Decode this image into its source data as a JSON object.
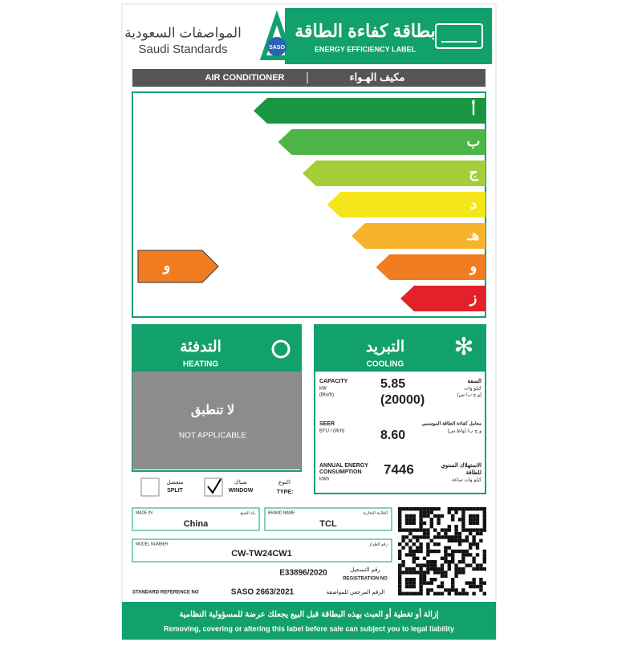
{
  "header": {
    "saso_arabic": "المواصفات السعودية",
    "saso_english": "Saudi Standards",
    "logo_text": "SASO",
    "title_arabic": "بطاقة كفاءة الطاقة",
    "title_english": "ENERGY EFFICIENCY LABEL"
  },
  "product": {
    "english": "AIR CONDITIONER",
    "arabic": "مكيف الهـواء"
  },
  "rating": {
    "classes": [
      "أ",
      "ب",
      "ج",
      "د",
      "هـ",
      "و",
      "ز"
    ],
    "current": "و"
  },
  "heating": {
    "arabic": "التدفئة",
    "english": "HEATING",
    "status_arabic": "لا تنطبق",
    "status_english": "NOT APPLICABLE"
  },
  "cooling": {
    "arabic": "التبريد",
    "english": "COOLING",
    "capacity": {
      "label_english": "CAPACITY",
      "unit_english": "kW",
      "unit2_english": "(Btu/h)",
      "label_arabic": "السعة",
      "unit_arabic": "كيلو وات",
      "unit2_arabic": "(و ح ب/ س)",
      "value": "5.85",
      "value2": "(20000)"
    },
    "seer": {
      "label_english": "SEER",
      "unit_english": "BTU / (W.h)",
      "label_arabic": "معامل كفاءة الطاقة الموسمي",
      "unit_arabic": "و ح ب/ (واط.س)",
      "value": "8.60"
    },
    "annual": {
      "label_english": "ANNUAL ENERGY",
      "label2_english": "CONSUMPTION",
      "unit_english": "kWh",
      "label_arabic": "الاستهلاك السنوي",
      "label2_arabic": "للطاقة",
      "unit_arabic": "كيلو وات ساعة",
      "value": "7446"
    }
  },
  "type": {
    "label_arabic": "النوع:",
    "label_english": "TYPE:",
    "split_arabic": "منفصل",
    "split_english": "SPLIT",
    "window_arabic": "شباك",
    "window_english": "WINDOW"
  },
  "details": {
    "made_in_english": "MADE IN",
    "made_in_arabic": "بلد الصنع",
    "made_in": "China",
    "brand_english": "BRAND NAME",
    "brand_arabic": "العلامة التجارية",
    "brand": "TCL",
    "model_english": "MODEL NUMBER",
    "model_arabic": "رقم الطراز",
    "model": "CW-TW24CW1",
    "registration": "E33896/2020",
    "registration_arabic": "رقم التسجيل",
    "registration_english": "REGISTRATION NO",
    "standard_english": "STANDARD REFERENCE NO",
    "standard": "SASO 2663/2021",
    "standard_arabic": "الرقم المرجعي للمواصفة"
  },
  "footer": {
    "arabic": "إزالة أو تغطية أو العبث بهذه البطاقة قبل البيع يجعلك عرضة للمسؤولية النظامية",
    "english": "Removing, covering or altering this label before sale can subject you to legal liability"
  }
}
